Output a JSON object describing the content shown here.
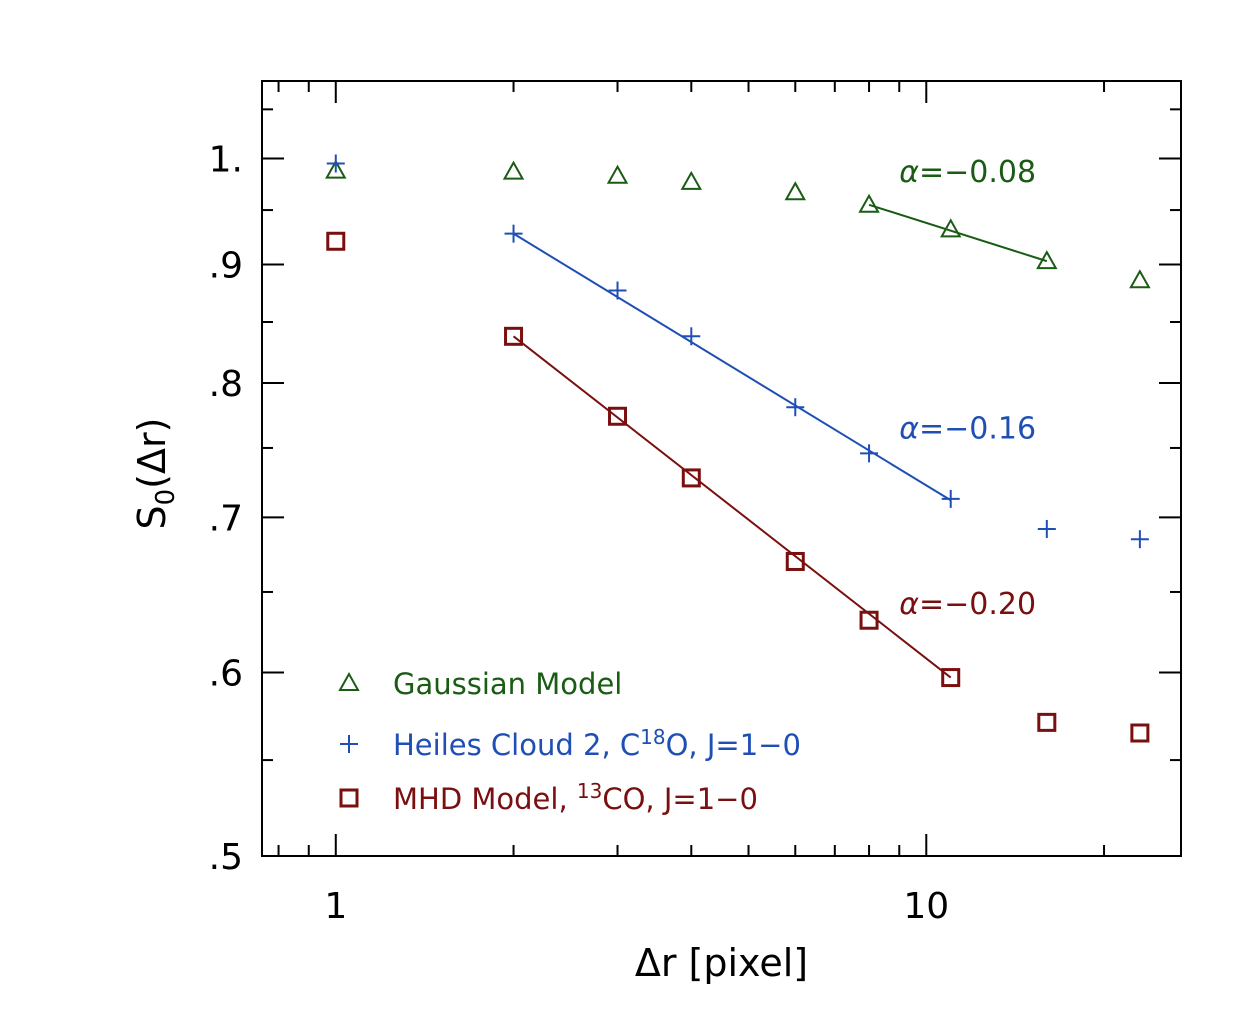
{
  "chart_data": {
    "type": "scatter",
    "x_scale": "log",
    "y_scale": "log",
    "xlim": [
      0.75,
      27
    ],
    "ylim": [
      0.5,
      1.08
    ],
    "xlabel": "Δr [pixel]",
    "ylabel": {
      "main": "S",
      "sub": "0",
      "rest": "(Δr)"
    },
    "x_ticks": [
      {
        "value": 1,
        "label": "1"
      },
      {
        "value": 10,
        "label": "10"
      }
    ],
    "y_ticks": [
      {
        "value": 1.0,
        "label": "1."
      },
      {
        "value": 0.9,
        "label": ".9"
      },
      {
        "value": 0.8,
        "label": ".8"
      },
      {
        "value": 0.7,
        "label": ".7"
      },
      {
        "value": 0.6,
        "label": ".6"
      },
      {
        "value": 0.5,
        "label": ".5"
      }
    ],
    "series": [
      {
        "key": "gaussian",
        "name": "Gaussian Model",
        "marker": "triangle",
        "color": "#1a5c14",
        "x": [
          1,
          2,
          3,
          4,
          6,
          8,
          11,
          16,
          23
        ],
        "y": [
          0.988,
          0.987,
          0.983,
          0.977,
          0.967,
          0.955,
          0.932,
          0.903,
          0.886
        ],
        "fit": {
          "x": [
            8,
            16
          ],
          "y": [
            0.955,
            0.903
          ],
          "alpha": "α=−0.08"
        }
      },
      {
        "key": "heiles",
        "name": "Heiles Cloud 2, C¹⁸O, J=1−0",
        "marker": "plus",
        "color": "#1f4fb5",
        "x": [
          1,
          2,
          3,
          4,
          6,
          8,
          11,
          16,
          23
        ],
        "y": [
          0.995,
          0.928,
          0.877,
          0.838,
          0.781,
          0.746,
          0.713,
          0.692,
          0.685
        ],
        "fit": {
          "x": [
            2,
            11
          ],
          "y": [
            0.928,
            0.712
          ],
          "alpha": "α=−0.16"
        }
      },
      {
        "key": "mhd",
        "name": "MHD Model, ¹³CO, J=1−0",
        "marker": "square",
        "color": "#7a0f0f",
        "x": [
          1,
          2,
          3,
          4,
          6,
          8,
          11,
          16,
          23
        ],
        "y": [
          0.921,
          0.838,
          0.774,
          0.728,
          0.67,
          0.632,
          0.597,
          0.571,
          0.565
        ],
        "fit": {
          "x": [
            2,
            11
          ],
          "y": [
            0.838,
            0.597
          ],
          "alpha": "α=−0.20"
        }
      }
    ],
    "legend": {
      "placement": "bottom-left",
      "items": [
        {
          "series": "gaussian",
          "parts": [
            {
              "t": "Gaussian Model"
            }
          ]
        },
        {
          "series": "heiles",
          "parts": [
            {
              "t": "Heiles Cloud 2, C"
            },
            {
              "t": "18",
              "sup": true
            },
            {
              "t": "O, J=1−0"
            }
          ]
        },
        {
          "series": "mhd",
          "parts": [
            {
              "t": "MHD Model, "
            },
            {
              "t": "13",
              "sup": true
            },
            {
              "t": "CO, J=1−0"
            }
          ]
        }
      ]
    },
    "annotations": [
      {
        "series": "gaussian",
        "greek": "α",
        "text": "=−0.08",
        "anchor_x": 9.0,
        "anchor_y": 0.977
      },
      {
        "series": "heiles",
        "greek": "α",
        "text": "=−0.16",
        "anchor_x": 9.0,
        "anchor_y": 0.757
      },
      {
        "series": "mhd",
        "greek": "α",
        "text": "=−0.20",
        "anchor_x": 9.0,
        "anchor_y": 0.636
      }
    ]
  }
}
